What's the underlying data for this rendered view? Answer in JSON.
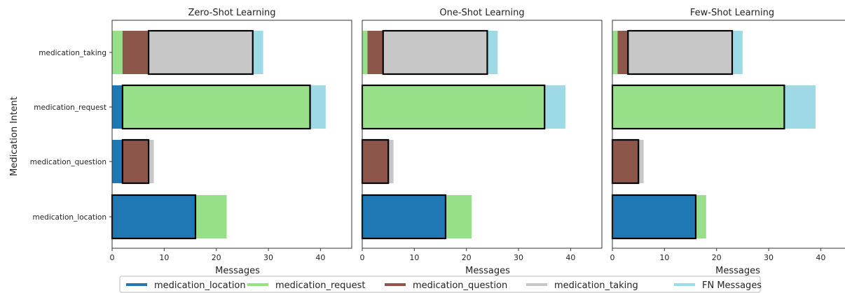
{
  "colors": {
    "medication_location": "#1f77b4",
    "medication_request": "#98df8a",
    "medication_question": "#8c564b",
    "medication_taking": "#c7c7c7",
    "fn": "#9edae5"
  },
  "chart_data": {
    "type": "bar",
    "orientation": "horizontal-stacked",
    "ylabel": "Medication Intent",
    "xlabel": "Messages",
    "categories": [
      "medication_taking",
      "medication_request",
      "medication_question",
      "medication_location"
    ],
    "xlim": [
      0,
      46
    ],
    "xticks": [
      0,
      10,
      20,
      30,
      40
    ],
    "grid": false,
    "legend": {
      "placement": "bottom",
      "entries": [
        "medication_location",
        "medication_request",
        "medication_question",
        "medication_taking",
        "FN Messages"
      ]
    },
    "panels": [
      {
        "title": "Zero-Shot Learning",
        "rows": [
          {
            "category": "medication_taking",
            "segments": [
              [
                "medication_request",
                2
              ],
              [
                "medication_question",
                5
              ],
              [
                "medication_taking",
                20
              ],
              [
                "fn",
                2
              ]
            ],
            "correct": "medication_taking"
          },
          {
            "category": "medication_request",
            "segments": [
              [
                "medication_location",
                2
              ],
              [
                "medication_request",
                36
              ],
              [
                "fn",
                3
              ]
            ],
            "correct": "medication_request"
          },
          {
            "category": "medication_question",
            "segments": [
              [
                "medication_location",
                2
              ],
              [
                "medication_question",
                5
              ],
              [
                "medication_taking",
                1
              ]
            ],
            "correct": "medication_question"
          },
          {
            "category": "medication_location",
            "segments": [
              [
                "medication_location",
                16
              ],
              [
                "medication_request",
                6
              ]
            ],
            "correct": "medication_location"
          }
        ]
      },
      {
        "title": "One-Shot Learning",
        "rows": [
          {
            "category": "medication_taking",
            "segments": [
              [
                "medication_request",
                1
              ],
              [
                "medication_question",
                3
              ],
              [
                "medication_taking",
                20
              ],
              [
                "fn",
                2
              ]
            ],
            "correct": "medication_taking"
          },
          {
            "category": "medication_request",
            "segments": [
              [
                "medication_request",
                35
              ],
              [
                "fn",
                4
              ]
            ],
            "correct": "medication_request"
          },
          {
            "category": "medication_question",
            "segments": [
              [
                "medication_question",
                5
              ],
              [
                "medication_taking",
                1
              ]
            ],
            "correct": "medication_question"
          },
          {
            "category": "medication_location",
            "segments": [
              [
                "medication_location",
                16
              ],
              [
                "medication_request",
                5
              ]
            ],
            "correct": "medication_location"
          }
        ]
      },
      {
        "title": "Few-Shot Learning",
        "rows": [
          {
            "category": "medication_taking",
            "segments": [
              [
                "medication_request",
                1
              ],
              [
                "medication_question",
                2
              ],
              [
                "medication_taking",
                20
              ],
              [
                "fn",
                2
              ]
            ],
            "correct": "medication_taking"
          },
          {
            "category": "medication_request",
            "segments": [
              [
                "medication_request",
                33
              ],
              [
                "fn",
                6
              ]
            ],
            "correct": "medication_request"
          },
          {
            "category": "medication_question",
            "segments": [
              [
                "medication_question",
                5
              ],
              [
                "medication_taking",
                1
              ]
            ],
            "correct": "medication_question"
          },
          {
            "category": "medication_location",
            "segments": [
              [
                "medication_location",
                16
              ],
              [
                "medication_request",
                2
              ]
            ],
            "correct": "medication_location"
          }
        ]
      }
    ]
  }
}
